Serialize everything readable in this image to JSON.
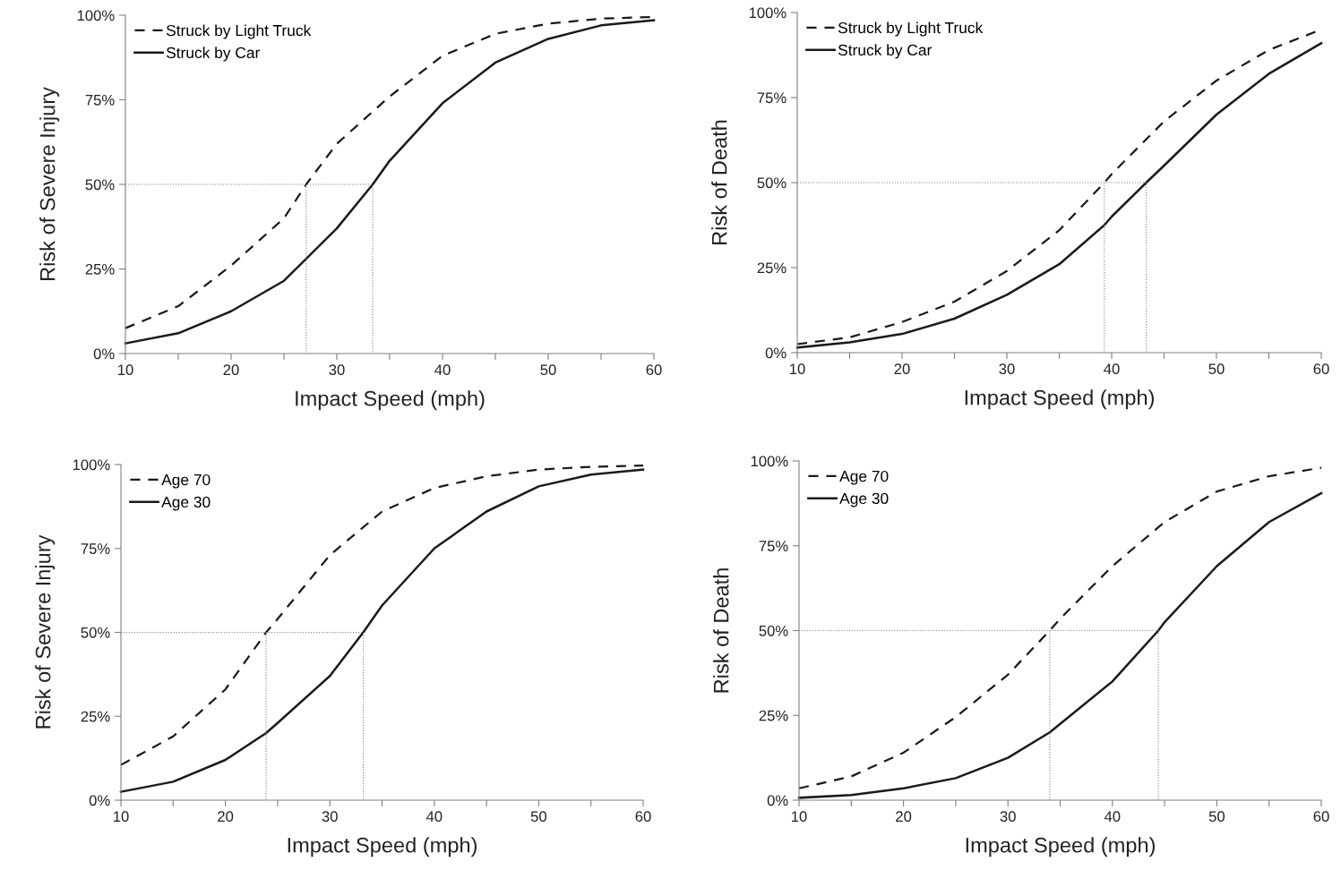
{
  "chart_data": [
    {
      "type": "line",
      "xlabel": "Impact Speed (mph)",
      "ylabel": "Risk of Severe Injury",
      "xlim": [
        10,
        60
      ],
      "ylim": [
        0,
        100
      ],
      "xticks": [
        10,
        {
          "value": 15,
          "label": null
        },
        20,
        {
          "value": 25,
          "label": null
        },
        30,
        {
          "value": 35,
          "label": null
        },
        40,
        {
          "value": 45,
          "label": null
        },
        50,
        {
          "value": 55,
          "label": null
        },
        60
      ],
      "yticks": [
        {
          "value": 0,
          "label": "0%"
        },
        {
          "value": 25,
          "label": "25%"
        },
        {
          "value": 50,
          "label": "50%"
        },
        {
          "value": 75,
          "label": "75%"
        },
        {
          "value": 100,
          "label": "100%"
        }
      ],
      "grid": false,
      "legend": "top left",
      "marker": "none",
      "series": [
        {
          "name": "Struck by Light Truck",
          "color": "#1a1a1a",
          "line_style": "dashed",
          "x": [
            10,
            15,
            20,
            25,
            27.1,
            30,
            35,
            40,
            45,
            50,
            55,
            60
          ],
          "values": [
            7.5,
            14,
            26,
            40,
            50,
            62,
            76,
            88,
            94.5,
            97.5,
            99,
            99.5
          ]
        },
        {
          "name": "Struck by Car",
          "color": "#1a1a1a",
          "line_style": "solid",
          "x": [
            10,
            15,
            20,
            25,
            27.1,
            30,
            33.4,
            35,
            40,
            45,
            50,
            55,
            60
          ],
          "values": [
            3,
            6,
            12.5,
            21.5,
            28,
            37,
            50,
            57,
            74,
            86,
            93,
            97,
            98.5
          ]
        },
        {
          "color": "#808080",
          "line_style": "dotted",
          "x": [
            10,
            33.4,
            33.4
          ],
          "values": [
            50,
            50,
            0
          ]
        },
        {
          "color": "#808080",
          "line_style": "dotted",
          "x": [
            27.1,
            27.1
          ],
          "values": [
            50,
            0
          ]
        }
      ]
    },
    {
      "type": "line",
      "xlabel": "Impact Speed (mph)",
      "ylabel": "Risk of Death",
      "xlim": [
        10,
        60
      ],
      "ylim": [
        0,
        100
      ],
      "xticks": [
        10,
        {
          "value": 15,
          "label": null
        },
        20,
        {
          "value": 25,
          "label": null
        },
        30,
        {
          "value": 35,
          "label": null
        },
        40,
        {
          "value": 45,
          "label": null
        },
        50,
        {
          "value": 55,
          "label": null
        },
        60
      ],
      "yticks": [
        {
          "value": 0,
          "label": "0%"
        },
        {
          "value": 25,
          "label": "25%"
        },
        {
          "value": 50,
          "label": "50%"
        },
        {
          "value": 75,
          "label": "75%"
        },
        {
          "value": 100,
          "label": "100%"
        }
      ],
      "grid": false,
      "legend": "top left",
      "marker": "none",
      "series": [
        {
          "name": "Struck by Light Truck",
          "color": "#1a1a1a",
          "line_style": "dashed",
          "x": [
            10,
            15,
            20,
            25,
            30,
            35,
            39.3,
            40,
            45,
            50,
            55,
            60
          ],
          "values": [
            2.5,
            4.5,
            9,
            15,
            24,
            36,
            50,
            52.5,
            68,
            80,
            89,
            95
          ]
        },
        {
          "name": "Struck by Car",
          "color": "#1a1a1a",
          "line_style": "solid",
          "x": [
            10,
            15,
            20,
            25,
            30,
            35,
            39.3,
            40,
            43.3,
            45,
            50,
            55,
            60
          ],
          "values": [
            1.5,
            3,
            5.5,
            10,
            17,
            26,
            37.5,
            40,
            50,
            55,
            70,
            82,
            91
          ]
        },
        {
          "color": "#808080",
          "line_style": "dotted",
          "x": [
            10,
            43.3,
            43.3
          ],
          "values": [
            50,
            50,
            0
          ]
        },
        {
          "color": "#808080",
          "line_style": "dotted",
          "x": [
            39.3,
            39.3
          ],
          "values": [
            50,
            0
          ]
        }
      ]
    },
    {
      "type": "line",
      "xlabel": "Impact Speed (mph)",
      "ylabel": "Risk of Severe Injury",
      "xlim": [
        10,
        60
      ],
      "ylim": [
        0,
        100
      ],
      "xticks": [
        10,
        {
          "value": 15,
          "label": null
        },
        20,
        {
          "value": 25,
          "label": null
        },
        30,
        {
          "value": 35,
          "label": null
        },
        40,
        {
          "value": 45,
          "label": null
        },
        50,
        {
          "value": 55,
          "label": null
        },
        60
      ],
      "yticks": [
        {
          "value": 0,
          "label": "0%"
        },
        {
          "value": 25,
          "label": "25%"
        },
        {
          "value": 50,
          "label": "50%"
        },
        {
          "value": 75,
          "label": "75%"
        },
        {
          "value": 100,
          "label": "100%"
        }
      ],
      "grid": false,
      "legend": "top left",
      "marker": "none",
      "series": [
        {
          "name": "Age 70",
          "color": "#1a1a1a",
          "line_style": "dashed",
          "x": [
            10,
            15,
            20,
            23.9,
            25,
            30,
            35,
            40,
            45,
            50,
            55,
            60
          ],
          "values": [
            10.5,
            19,
            33,
            50,
            54,
            73,
            86,
            93,
            96.5,
            98.5,
            99.3,
            99.7
          ]
        },
        {
          "name": "Age 30",
          "color": "#1a1a1a",
          "line_style": "solid",
          "x": [
            10,
            15,
            20,
            23.9,
            25,
            30,
            33.2,
            35,
            40,
            45,
            50,
            55,
            60
          ],
          "values": [
            2.5,
            5.5,
            12,
            20,
            23,
            37,
            50,
            58,
            75,
            86,
            93.5,
            97,
            98.5
          ]
        },
        {
          "color": "#808080",
          "line_style": "dotted",
          "x": [
            10,
            33.2,
            33.2
          ],
          "values": [
            50,
            50,
            0
          ]
        },
        {
          "color": "#808080",
          "line_style": "dotted",
          "x": [
            23.9,
            23.9
          ],
          "values": [
            50,
            0
          ]
        }
      ]
    },
    {
      "type": "line",
      "xlabel": "Impact Speed (mph)",
      "ylabel": "Risk of Death",
      "xlim": [
        10,
        60
      ],
      "ylim": [
        0,
        100
      ],
      "xticks": [
        10,
        {
          "value": 15,
          "label": null
        },
        20,
        {
          "value": 25,
          "label": null
        },
        30,
        {
          "value": 35,
          "label": null
        },
        40,
        {
          "value": 45,
          "label": null
        },
        50,
        {
          "value": 55,
          "label": null
        },
        60
      ],
      "yticks": [
        {
          "value": 0,
          "label": "0%"
        },
        {
          "value": 25,
          "label": "25%"
        },
        {
          "value": 50,
          "label": "50%"
        },
        {
          "value": 75,
          "label": "75%"
        },
        {
          "value": 100,
          "label": "100%"
        }
      ],
      "grid": false,
      "legend": "top left",
      "marker": "none",
      "series": [
        {
          "name": "Age 70",
          "color": "#1a1a1a",
          "line_style": "dashed",
          "x": [
            10,
            15,
            20,
            25,
            30,
            34,
            35,
            40,
            45,
            50,
            55,
            60
          ],
          "values": [
            3.5,
            7,
            14,
            24.5,
            37,
            50,
            53.5,
            69,
            82,
            91,
            95.5,
            98
          ]
        },
        {
          "name": "Age 30",
          "color": "#1a1a1a",
          "line_style": "solid",
          "x": [
            10,
            15,
            20,
            25,
            30,
            34,
            35,
            40,
            44.4,
            45,
            50,
            55,
            60
          ],
          "values": [
            0.7,
            1.5,
            3.5,
            6.5,
            12.5,
            20,
            22.5,
            35,
            50,
            52.5,
            69,
            82,
            90.5
          ]
        },
        {
          "color": "#808080",
          "line_style": "dotted",
          "x": [
            10,
            44.4,
            44.4
          ],
          "values": [
            50,
            50,
            0
          ]
        },
        {
          "color": "#808080",
          "line_style": "dotted",
          "x": [
            34,
            34
          ],
          "values": [
            50,
            0
          ]
        }
      ]
    }
  ]
}
